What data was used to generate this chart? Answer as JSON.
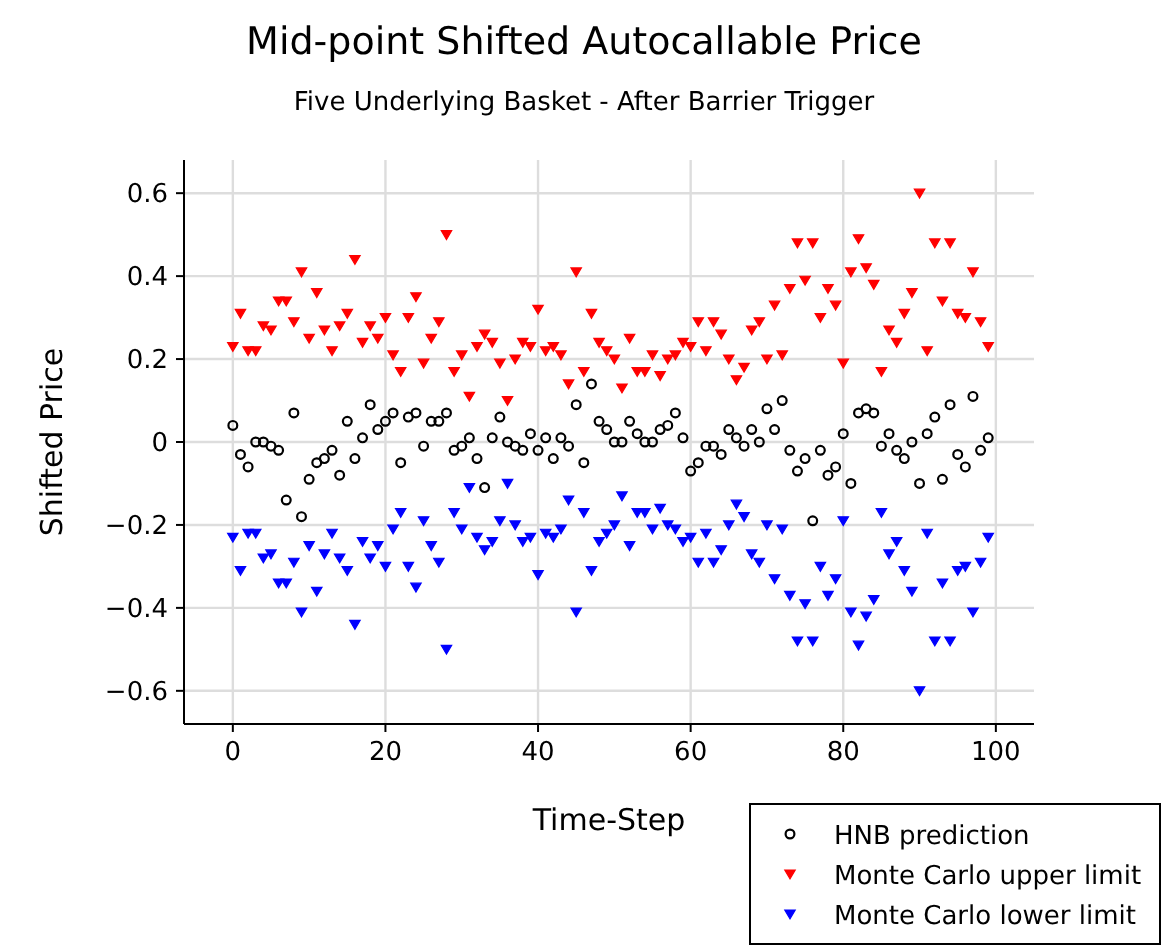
{
  "chart_data": {
    "type": "scatter",
    "title": "Mid-point Shifted Autocallable Price",
    "subtitle": "Five Underlying Basket - After Barrier Trigger",
    "xlabel": "Time-Step",
    "ylabel": "Shifted Price",
    "x": [
      0,
      1,
      2,
      3,
      4,
      5,
      6,
      7,
      8,
      9,
      10,
      11,
      12,
      13,
      14,
      15,
      16,
      17,
      18,
      19,
      20,
      21,
      22,
      23,
      24,
      25,
      26,
      27,
      28,
      29,
      30,
      31,
      32,
      33,
      34,
      35,
      36,
      37,
      38,
      39,
      40,
      41,
      42,
      43,
      44,
      45,
      46,
      47,
      48,
      49,
      50,
      51,
      52,
      53,
      54,
      55,
      56,
      57,
      58,
      59,
      60,
      61,
      62,
      63,
      64,
      65,
      66,
      67,
      68,
      69,
      70,
      71,
      72,
      73,
      74,
      75,
      76,
      77,
      78,
      79,
      80,
      81,
      82,
      83,
      84,
      85,
      86,
      87,
      88,
      89,
      90,
      91,
      92,
      93,
      94,
      95,
      96,
      97,
      98,
      99
    ],
    "xlim": [
      -6.4,
      105
    ],
    "xticks": [
      0,
      20,
      40,
      60,
      80,
      100
    ],
    "ylim": [
      -0.68,
      0.68
    ],
    "yticks": [
      {
        "value": -0.6,
        "label": "−0.6"
      },
      {
        "value": -0.4,
        "label": "−0.4"
      },
      {
        "value": -0.2,
        "label": "−0.2"
      },
      0,
      0.2,
      0.4,
      0.6
    ],
    "grid": true,
    "legend": "bottom right",
    "series": [
      {
        "name": "HNB prediction",
        "color": "#000000",
        "marker": "circle",
        "values": [
          0.04,
          -0.03,
          -0.06,
          0,
          0,
          -0.01,
          -0.02,
          -0.14,
          0.07,
          -0.18,
          -0.09,
          -0.05,
          -0.04,
          -0.02,
          -0.08,
          0.05,
          -0.04,
          0.01,
          0.09,
          0.03,
          0.05,
          0.07,
          -0.05,
          0.06,
          0.07,
          -0.01,
          0.05,
          0.05,
          0.07,
          -0.02,
          -0.01,
          0.01,
          -0.04,
          -0.11,
          0.01,
          0.06,
          0,
          -0.01,
          -0.02,
          0.02,
          -0.02,
          0.01,
          -0.04,
          0.01,
          -0.01,
          0.09,
          -0.05,
          0.14,
          0.05,
          0.03,
          0,
          0,
          0.05,
          0.02,
          0,
          0,
          0.03,
          0.04,
          0.07,
          0.01,
          -0.07,
          -0.05,
          -0.01,
          -0.01,
          -0.03,
          0.03,
          0.01,
          -0.01,
          0.03,
          0,
          0.08,
          0.03,
          0.1,
          -0.02,
          -0.07,
          -0.04,
          -0.19,
          -0.02,
          -0.08,
          -0.06,
          0.02,
          -0.1,
          0.07,
          0.08,
          0.07,
          -0.01,
          0.02,
          -0.02,
          -0.04,
          0,
          -0.1,
          0.02,
          0.06,
          -0.09,
          0.09,
          -0.03,
          -0.06,
          0.11,
          -0.02,
          0.01
        ]
      },
      {
        "name": "Monte Carlo upper limit",
        "color": "#ff0000",
        "marker": "triangle",
        "values": [
          0.23,
          0.31,
          0.22,
          0.22,
          0.28,
          0.27,
          0.34,
          0.34,
          0.29,
          0.41,
          0.25,
          0.36,
          0.27,
          0.22,
          0.28,
          0.31,
          0.44,
          0.24,
          0.28,
          0.25,
          0.3,
          0.21,
          0.17,
          0.3,
          0.35,
          0.19,
          0.25,
          0.29,
          0.5,
          0.17,
          0.21,
          0.11,
          0.23,
          0.26,
          0.24,
          0.19,
          0.1,
          0.2,
          0.24,
          0.23,
          0.32,
          0.22,
          0.23,
          0.21,
          0.14,
          0.41,
          0.17,
          0.31,
          0.24,
          0.22,
          0.2,
          0.13,
          0.25,
          0.17,
          0.17,
          0.21,
          0.16,
          0.2,
          0.21,
          0.24,
          0.23,
          0.29,
          0.22,
          0.29,
          0.26,
          0.2,
          0.15,
          0.18,
          0.27,
          0.29,
          0.2,
          0.33,
          0.21,
          0.37,
          0.48,
          0.39,
          0.48,
          0.3,
          0.37,
          0.33,
          0.19,
          0.41,
          0.49,
          0.42,
          0.38,
          0.17,
          0.27,
          0.24,
          0.31,
          0.36,
          0.6,
          0.22,
          0.48,
          0.34,
          0.48,
          0.31,
          0.3,
          0.41,
          0.29,
          0.23
        ]
      },
      {
        "name": "Monte Carlo lower limit",
        "color": "#0000ff",
        "marker": "triangle",
        "values": [
          -0.23,
          -0.31,
          -0.22,
          -0.22,
          -0.28,
          -0.27,
          -0.34,
          -0.34,
          -0.29,
          -0.41,
          -0.25,
          -0.36,
          -0.27,
          -0.22,
          -0.28,
          -0.31,
          -0.44,
          -0.24,
          -0.28,
          -0.25,
          -0.3,
          -0.21,
          -0.17,
          -0.3,
          -0.35,
          -0.19,
          -0.25,
          -0.29,
          -0.5,
          -0.17,
          -0.21,
          -0.11,
          -0.23,
          -0.26,
          -0.24,
          -0.19,
          -0.1,
          -0.2,
          -0.24,
          -0.23,
          -0.32,
          -0.22,
          -0.23,
          -0.21,
          -0.14,
          -0.41,
          -0.17,
          -0.31,
          -0.24,
          -0.22,
          -0.2,
          -0.13,
          -0.25,
          -0.17,
          -0.17,
          -0.21,
          -0.16,
          -0.2,
          -0.21,
          -0.24,
          -0.23,
          -0.29,
          -0.22,
          -0.29,
          -0.26,
          -0.2,
          -0.15,
          -0.18,
          -0.27,
          -0.29,
          -0.2,
          -0.33,
          -0.21,
          -0.37,
          -0.48,
          -0.39,
          -0.48,
          -0.3,
          -0.37,
          -0.33,
          -0.19,
          -0.41,
          -0.49,
          -0.42,
          -0.38,
          -0.17,
          -0.27,
          -0.24,
          -0.31,
          -0.36,
          -0.6,
          -0.22,
          -0.48,
          -0.34,
          -0.48,
          -0.31,
          -0.3,
          -0.41,
          -0.29,
          -0.23
        ]
      }
    ]
  }
}
